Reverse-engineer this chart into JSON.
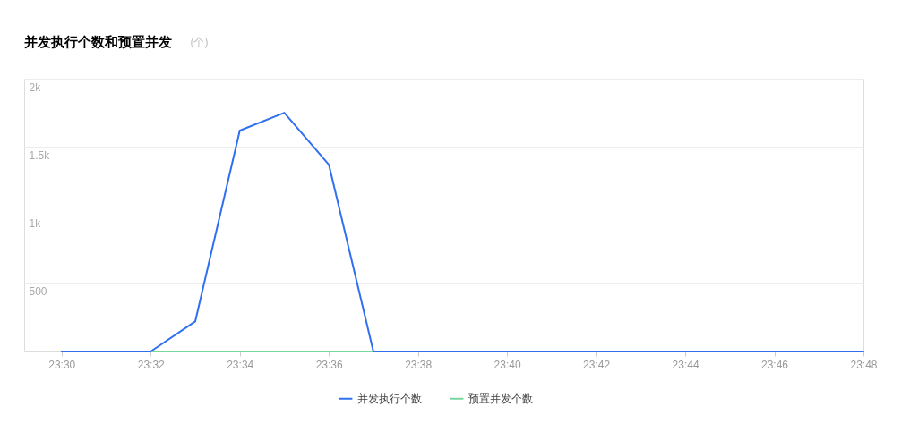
{
  "chart_data": {
    "type": "line",
    "title": "并发执行个数和预置并发",
    "ylabel": "(个)",
    "x": [
      23.5,
      23.516667,
      23.533333,
      23.55,
      23.566667,
      23.583333,
      23.6,
      23.616667,
      23.633333,
      23.65,
      23.666667,
      23.683333,
      23.7,
      23.716667,
      23.733333,
      23.75,
      23.766667,
      23.783333,
      23.8
    ],
    "series": [
      {
        "name": "并发执行个数",
        "color": "#2f6ff0",
        "values": [
          0,
          0,
          0,
          220,
          1620,
          1750,
          1370,
          0,
          0,
          0,
          0,
          0,
          0,
          0,
          0,
          0,
          0,
          0,
          0
        ]
      },
      {
        "name": "预置并发个数",
        "color": "#77d79f",
        "values": [
          null,
          null,
          0,
          0,
          0,
          0,
          0,
          0,
          null,
          null,
          null,
          null,
          null,
          null,
          null,
          null,
          null,
          null,
          null
        ]
      }
    ],
    "xlim": [
      23.486,
      23.8
    ],
    "xticks": [
      {
        "value": 23.5,
        "label": "23:30"
      },
      {
        "value": 23.533333,
        "label": "23:32"
      },
      {
        "value": 23.566667,
        "label": "23:34"
      },
      {
        "value": 23.6,
        "label": "23:36"
      },
      {
        "value": 23.633333,
        "label": "23:38"
      },
      {
        "value": 23.666667,
        "label": "23:40"
      },
      {
        "value": 23.7,
        "label": "23:42"
      },
      {
        "value": 23.733333,
        "label": "23:44"
      },
      {
        "value": 23.766667,
        "label": "23:46"
      },
      {
        "value": 23.8,
        "label": "23:48"
      }
    ],
    "ylim": [
      0,
      2000
    ],
    "yticks": [
      {
        "value": 0,
        "label": null
      },
      500,
      {
        "value": 1000,
        "label": "1k"
      },
      {
        "value": 1500,
        "label": "1.5k"
      },
      {
        "value": 2000,
        "label": "2k"
      }
    ],
    "grid": "y",
    "legend": "bottom",
    "line_style": "solid"
  }
}
